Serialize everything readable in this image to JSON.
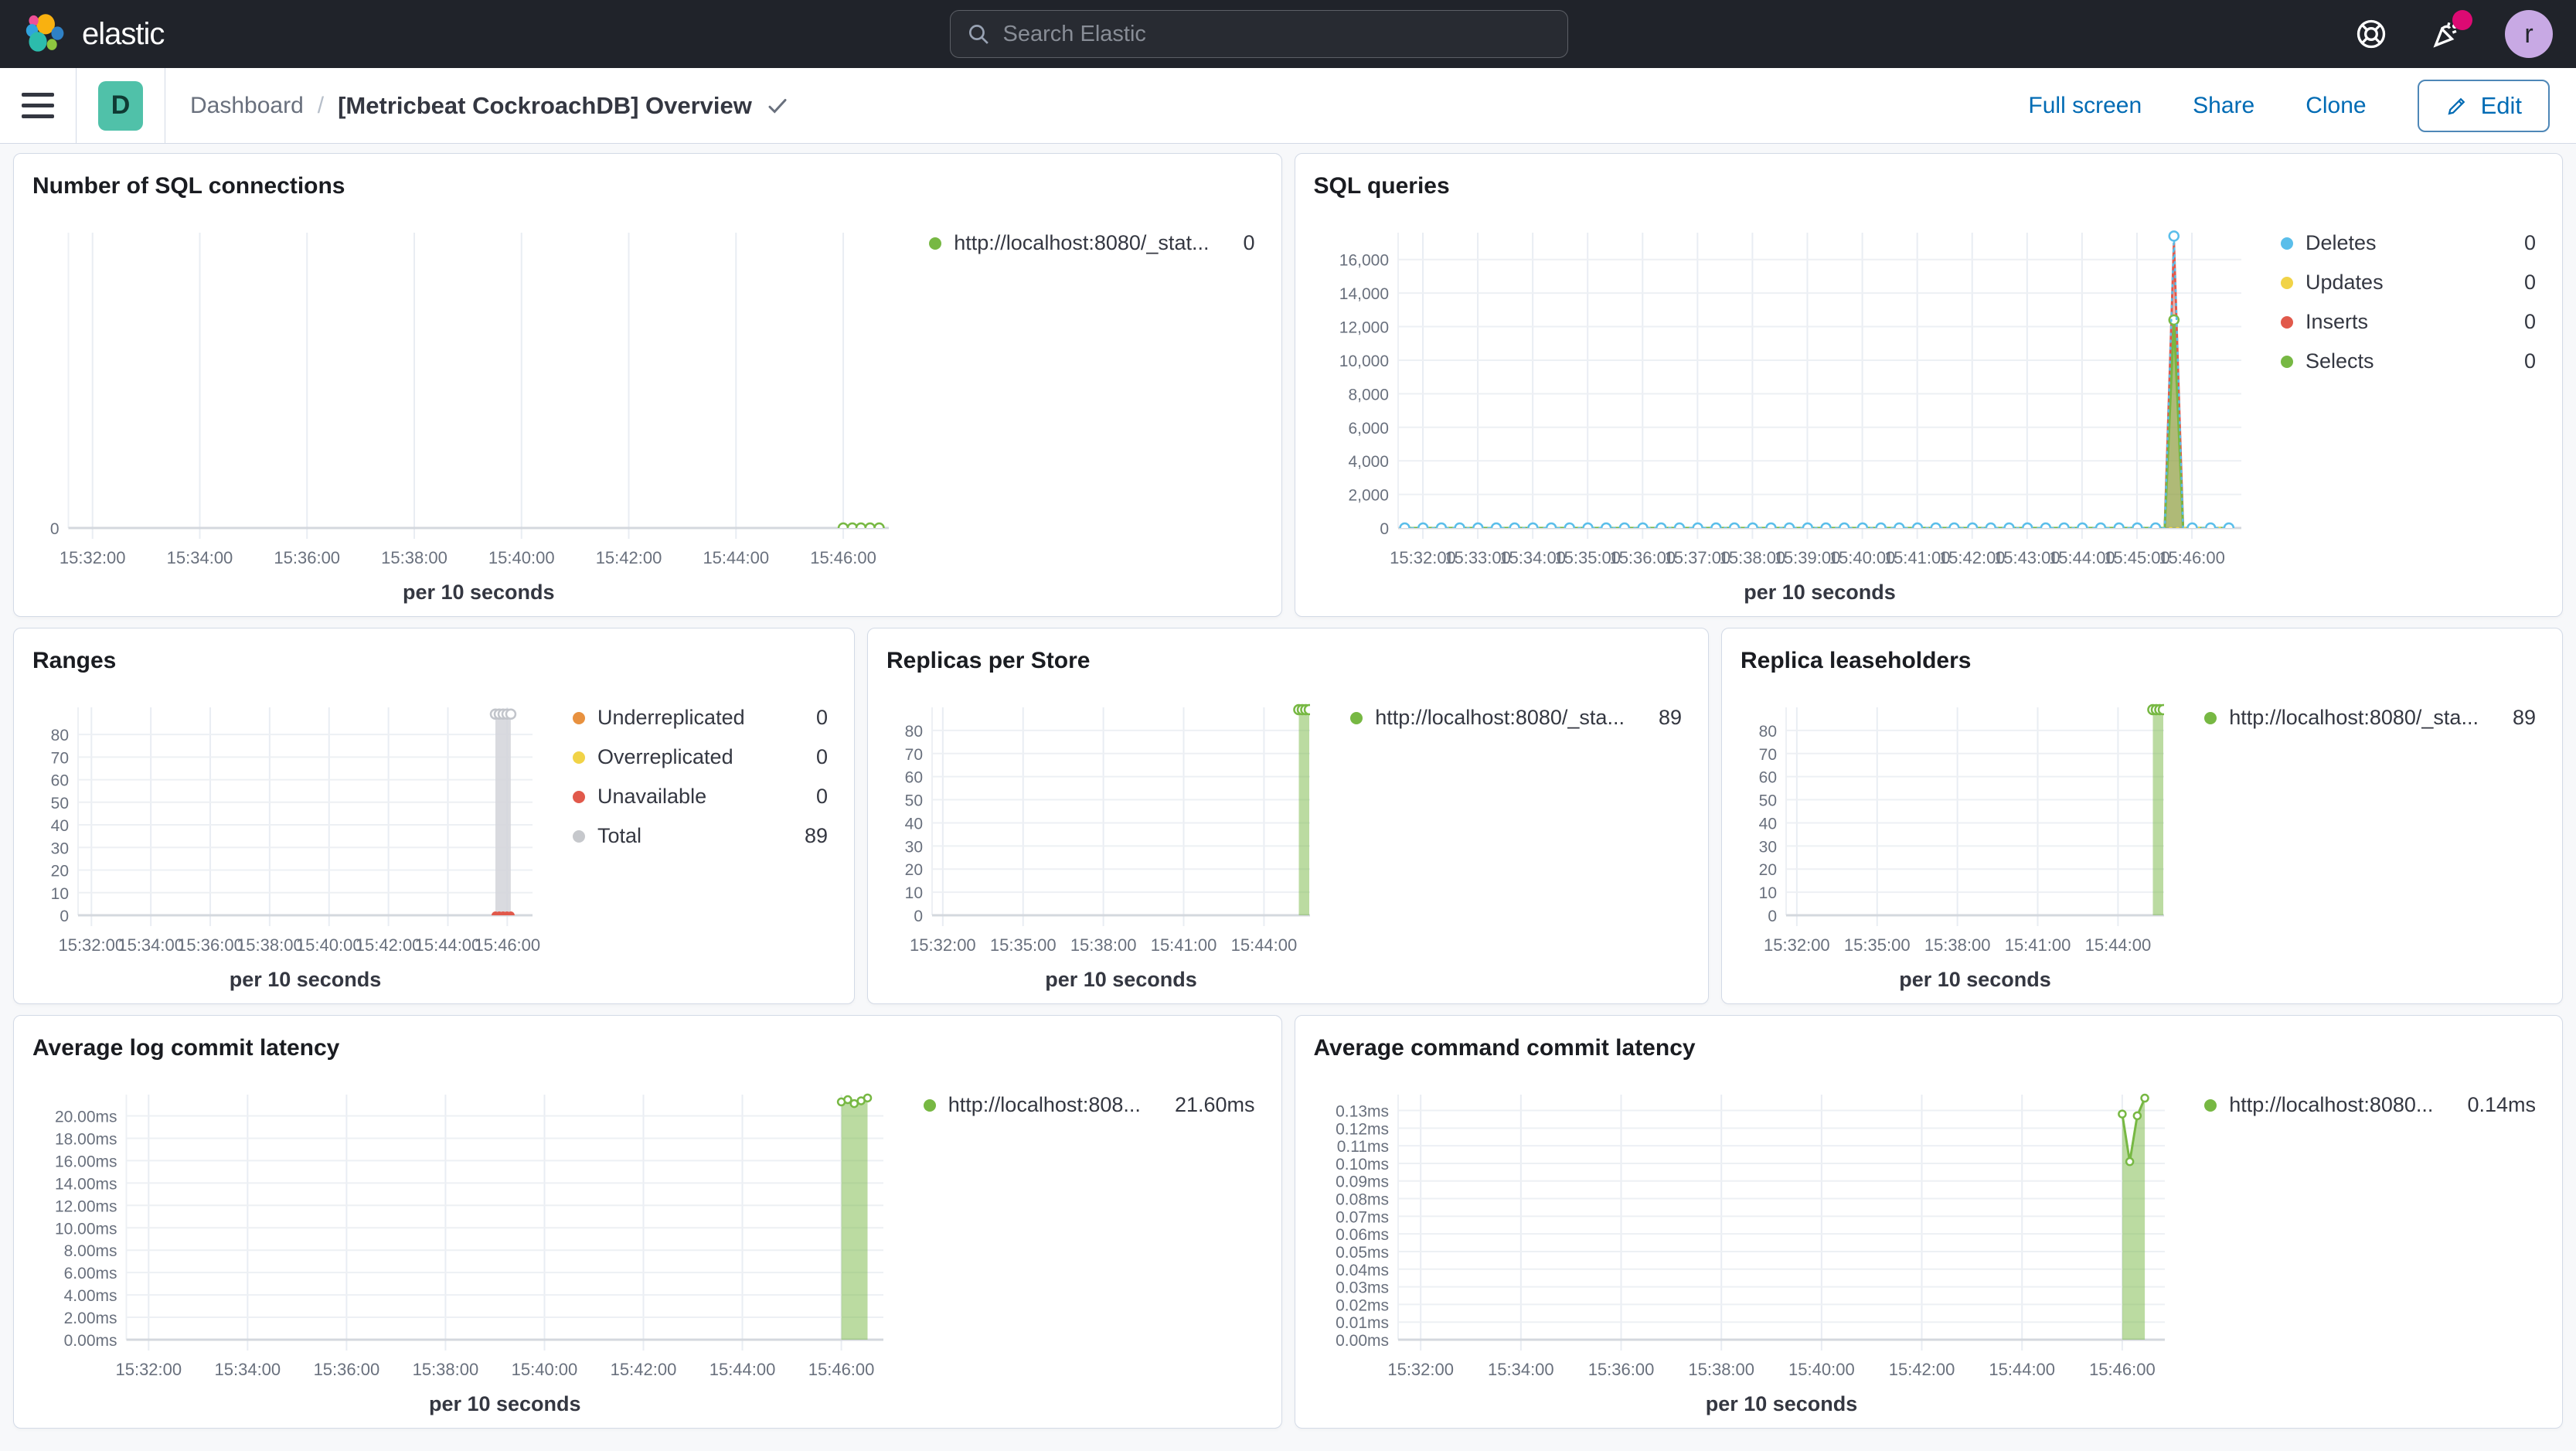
{
  "header": {
    "brand": "elastic",
    "search_placeholder": "Search Elastic",
    "avatar_initial": "r"
  },
  "toolbar": {
    "space_badge": "D",
    "breadcrumb_root": "Dashboard",
    "breadcrumb_separator": "/",
    "title": "[Metricbeat CockroachDB] Overview",
    "actions": [
      {
        "label": "Full screen"
      },
      {
        "label": "Share"
      },
      {
        "label": "Clone"
      }
    ],
    "edit_label": "Edit"
  },
  "colors": {
    "header_bg": "#20232a",
    "accent_link": "#006BB4",
    "badge_teal": "#50c1a9",
    "notification_pink": "#dd0a73",
    "avatar_purple": "#c8a9e4",
    "series_green": "#77B843",
    "series_blue": "#5ABEEA",
    "series_yellow": "#F1D347",
    "series_red": "#E1594B",
    "series_orange": "#E8913F",
    "series_gray": "#d2d4d9"
  },
  "chart_data": [
    {
      "type": "line",
      "title": "Number of SQL connections",
      "xlabel": "per 10 seconds",
      "xlim": [
        31.55,
        46.85
      ],
      "ylim": [
        0,
        10
      ],
      "x_ticks": [
        [
          32,
          "15:32:00"
        ],
        [
          34,
          "15:34:00"
        ],
        [
          36,
          "15:36:00"
        ],
        [
          38,
          "15:38:00"
        ],
        [
          40,
          "15:40:00"
        ],
        [
          42,
          "15:42:00"
        ],
        [
          44,
          "15:44:00"
        ],
        [
          46,
          "15:46:00"
        ]
      ],
      "y_ticks": [
        [
          0,
          "0"
        ]
      ],
      "legend": [
        {
          "label": "http://localhost:8080/_stat...",
          "value": "0",
          "color": "#77B843"
        }
      ],
      "series": [
        {
          "name": "http://localhost:8080/_stat...",
          "color": "#77B843",
          "type": "line",
          "marker": "open",
          "marker_mode": "all",
          "points": [
            [
              46.0,
              0
            ],
            [
              46.17,
              0
            ],
            [
              46.33,
              0
            ],
            [
              46.5,
              0
            ],
            [
              46.67,
              0
            ]
          ]
        }
      ]
    },
    {
      "type": "line",
      "title": "SQL queries",
      "xlabel": "per 10 seconds",
      "xlim": [
        31.55,
        46.9
      ],
      "ylim": [
        0,
        17600
      ],
      "x_ticks": [
        [
          32,
          "15:32:00"
        ],
        [
          33,
          "15:33:00"
        ],
        [
          34,
          "15:34:00"
        ],
        [
          35,
          "15:35:00"
        ],
        [
          36,
          "15:36:00"
        ],
        [
          37,
          "15:37:00"
        ],
        [
          38,
          "15:38:00"
        ],
        [
          39,
          "15:39:00"
        ],
        [
          40,
          "15:40:00"
        ],
        [
          41,
          "15:41:00"
        ],
        [
          42,
          "15:42:00"
        ],
        [
          43,
          "15:43:00"
        ],
        [
          44,
          "15:44:00"
        ],
        [
          45,
          "15:45:00"
        ],
        [
          46,
          "15:46:00"
        ]
      ],
      "y_ticks": [
        [
          0,
          "0"
        ],
        [
          2000,
          "2,000"
        ],
        [
          4000,
          "4,000"
        ],
        [
          6000,
          "6,000"
        ],
        [
          8000,
          "8,000"
        ],
        [
          10000,
          "10,000"
        ],
        [
          12000,
          "12,000"
        ],
        [
          14000,
          "14,000"
        ],
        [
          16000,
          "16,000"
        ]
      ],
      "legend": [
        {
          "label": "Deletes",
          "value": "0",
          "color": "#5ABEEA"
        },
        {
          "label": "Updates",
          "value": "0",
          "color": "#F1D347"
        },
        {
          "label": "Inserts",
          "value": "0",
          "color": "#E1594B"
        },
        {
          "label": "Selects",
          "value": "0",
          "color": "#77B843"
        }
      ],
      "series": [
        {
          "name": "Inserts",
          "color": "#E1594B",
          "type": "area",
          "fill_opacity": 0.4,
          "flat": {
            "from": 31.67,
            "to": 46.83,
            "step": 0.1667,
            "y": 0
          },
          "spike": [
            45.67,
            17000
          ]
        },
        {
          "name": "Selects",
          "color": "#77B843",
          "type": "area",
          "fill_opacity": 0.55,
          "marker": "open",
          "marker_mode": "spike",
          "flat": {
            "from": 31.67,
            "to": 46.83,
            "step": 0.1667,
            "y": 0
          },
          "spike": [
            45.67,
            12400
          ]
        },
        {
          "name": "Updates",
          "color": "#F1D347",
          "type": "line",
          "dash": "2 7",
          "flat": {
            "from": 31.67,
            "to": 46.83,
            "step": 0.1667,
            "y": 0
          }
        },
        {
          "name": "Deletes",
          "color": "#5ABEEA",
          "type": "line",
          "dash": "2 7",
          "marker": "open",
          "marker_mode": "all",
          "marker_every": 2,
          "flat": {
            "from": 31.67,
            "to": 46.83,
            "step": 0.1667,
            "y": 0
          },
          "spike": [
            45.67,
            17400
          ]
        }
      ]
    },
    {
      "type": "line",
      "title": "Ranges",
      "xlabel": "per 10 seconds",
      "xlim": [
        31.55,
        46.85
      ],
      "ylim": [
        0,
        92
      ],
      "x_ticks": [
        [
          32,
          "15:32:00"
        ],
        [
          34,
          "15:34:00"
        ],
        [
          36,
          "15:36:00"
        ],
        [
          38,
          "15:38:00"
        ],
        [
          40,
          "15:40:00"
        ],
        [
          42,
          "15:42:00"
        ],
        [
          44,
          "15:44:00"
        ],
        [
          46,
          "15:46:00"
        ]
      ],
      "y_ticks": [
        [
          0,
          "0"
        ],
        [
          10,
          "10"
        ],
        [
          20,
          "20"
        ],
        [
          30,
          "30"
        ],
        [
          40,
          "40"
        ],
        [
          50,
          "50"
        ],
        [
          60,
          "60"
        ],
        [
          70,
          "70"
        ],
        [
          80,
          "80"
        ]
      ],
      "legend": [
        {
          "label": "Underreplicated",
          "value": "0",
          "color": "#E8913F"
        },
        {
          "label": "Overreplicated",
          "value": "0",
          "color": "#F1D347"
        },
        {
          "label": "Unavailable",
          "value": "0",
          "color": "#E1594B"
        },
        {
          "label": "Total",
          "value": "89",
          "color": "#c6c8cc"
        }
      ],
      "series": [
        {
          "name": "Total",
          "color": "#d2d4d9",
          "stroke": "#c2c5cb",
          "type": "area",
          "fill_opacity": 0.85,
          "marker": "open",
          "marker_mode": "all",
          "points": [
            [
              45.6,
              89
            ],
            [
              45.73,
              89
            ],
            [
              45.86,
              89
            ],
            [
              45.99,
              89
            ],
            [
              46.12,
              89
            ]
          ]
        },
        {
          "name": "Underreplicated",
          "color": "#E8913F",
          "type": "line",
          "points": [
            [
              45.6,
              0
            ],
            [
              45.73,
              0
            ],
            [
              45.86,
              0
            ],
            [
              45.99,
              0
            ],
            [
              46.12,
              0
            ]
          ]
        },
        {
          "name": "Overreplicated",
          "color": "#F1D347",
          "type": "line",
          "points": [
            [
              45.6,
              0
            ],
            [
              45.73,
              0
            ],
            [
              45.86,
              0
            ],
            [
              45.99,
              0
            ],
            [
              46.12,
              0
            ]
          ]
        },
        {
          "name": "Unavailable",
          "color": "#E1594B",
          "type": "line",
          "marker": "dot",
          "marker_mode": "all",
          "points": [
            [
              45.6,
              0
            ],
            [
              45.73,
              0
            ],
            [
              45.86,
              0
            ],
            [
              45.99,
              0
            ],
            [
              46.12,
              0
            ]
          ]
        }
      ]
    },
    {
      "type": "area",
      "title": "Replicas per Store",
      "xlabel": "per 10 seconds",
      "xlim": [
        31.6,
        45.72
      ],
      "ylim": [
        0,
        90
      ],
      "x_ticks": [
        [
          32,
          "15:32:00"
        ],
        [
          35,
          "15:35:00"
        ],
        [
          38,
          "15:38:00"
        ],
        [
          41,
          "15:41:00"
        ],
        [
          44,
          "15:44:00"
        ]
      ],
      "y_ticks": [
        [
          0,
          "0"
        ],
        [
          10,
          "10"
        ],
        [
          20,
          "20"
        ],
        [
          30,
          "30"
        ],
        [
          40,
          "40"
        ],
        [
          50,
          "50"
        ],
        [
          60,
          "60"
        ],
        [
          70,
          "70"
        ],
        [
          80,
          "80"
        ]
      ],
      "legend": [
        {
          "label": "http://localhost:8080/_sta...",
          "value": "89",
          "color": "#77B843"
        }
      ],
      "series": [
        {
          "name": "http://localhost:8080/_sta...",
          "color": "#77B843",
          "type": "area",
          "fill_opacity": 0.5,
          "marker": "open",
          "marker_mode": "all",
          "points": [
            [
              45.3,
              89
            ],
            [
              45.43,
              89
            ],
            [
              45.56,
              89
            ],
            [
              45.69,
              89
            ]
          ]
        }
      ]
    },
    {
      "type": "area",
      "title": "Replica leaseholders",
      "xlabel": "per 10 seconds",
      "xlim": [
        31.6,
        45.72
      ],
      "ylim": [
        0,
        90
      ],
      "x_ticks": [
        [
          32,
          "15:32:00"
        ],
        [
          35,
          "15:35:00"
        ],
        [
          38,
          "15:38:00"
        ],
        [
          41,
          "15:41:00"
        ],
        [
          44,
          "15:44:00"
        ]
      ],
      "y_ticks": [
        [
          0,
          "0"
        ],
        [
          10,
          "10"
        ],
        [
          20,
          "20"
        ],
        [
          30,
          "30"
        ],
        [
          40,
          "40"
        ],
        [
          50,
          "50"
        ],
        [
          60,
          "60"
        ],
        [
          70,
          "70"
        ],
        [
          80,
          "80"
        ]
      ],
      "legend": [
        {
          "label": "http://localhost:8080/_sta...",
          "value": "89",
          "color": "#77B843"
        }
      ],
      "series": [
        {
          "name": "http://localhost:8080/_sta...",
          "color": "#77B843",
          "type": "area",
          "fill_opacity": 0.5,
          "marker": "open",
          "marker_mode": "all",
          "points": [
            [
              45.3,
              89
            ],
            [
              45.43,
              89
            ],
            [
              45.56,
              89
            ],
            [
              45.69,
              89
            ]
          ]
        }
      ]
    },
    {
      "type": "area",
      "title": "Average log commit latency",
      "xlabel": "per 10 seconds",
      "xlim": [
        31.55,
        46.85
      ],
      "ylim": [
        0,
        21.9
      ],
      "x_ticks": [
        [
          32,
          "15:32:00"
        ],
        [
          34,
          "15:34:00"
        ],
        [
          36,
          "15:36:00"
        ],
        [
          38,
          "15:38:00"
        ],
        [
          40,
          "15:40:00"
        ],
        [
          42,
          "15:42:00"
        ],
        [
          44,
          "15:44:00"
        ],
        [
          46,
          "15:46:00"
        ]
      ],
      "y_ticks": [
        [
          0,
          "0.00ms"
        ],
        [
          2,
          "2.00ms"
        ],
        [
          4,
          "4.00ms"
        ],
        [
          6,
          "6.00ms"
        ],
        [
          8,
          "8.00ms"
        ],
        [
          10,
          "10.00ms"
        ],
        [
          12,
          "12.00ms"
        ],
        [
          14,
          "14.00ms"
        ],
        [
          16,
          "16.00ms"
        ],
        [
          18,
          "18.00ms"
        ],
        [
          20,
          "20.00ms"
        ]
      ],
      "legend": [
        {
          "label": "http://localhost:808...",
          "value": "21.60ms",
          "color": "#77B843"
        }
      ],
      "series": [
        {
          "name": "http://localhost:808...",
          "color": "#77B843",
          "type": "area",
          "fill_opacity": 0.5,
          "marker": "open",
          "marker_mode": "all",
          "marker_r": 4.5,
          "points": [
            [
              46.0,
              21.25
            ],
            [
              46.13,
              21.45
            ],
            [
              46.26,
              21.1
            ],
            [
              46.4,
              21.35
            ],
            [
              46.53,
              21.6
            ]
          ]
        }
      ]
    },
    {
      "type": "area",
      "title": "Average command commit latency",
      "xlabel": "per 10 seconds",
      "xlim": [
        31.55,
        46.85
      ],
      "ylim": [
        0,
        0.139
      ],
      "x_ticks": [
        [
          32,
          "15:32:00"
        ],
        [
          34,
          "15:34:00"
        ],
        [
          36,
          "15:36:00"
        ],
        [
          38,
          "15:38:00"
        ],
        [
          40,
          "15:40:00"
        ],
        [
          42,
          "15:42:00"
        ],
        [
          44,
          "15:44:00"
        ],
        [
          46,
          "15:46:00"
        ]
      ],
      "y_ticks": [
        [
          0,
          "0.00ms"
        ],
        [
          0.01,
          "0.01ms"
        ],
        [
          0.02,
          "0.02ms"
        ],
        [
          0.03,
          "0.03ms"
        ],
        [
          0.04,
          "0.04ms"
        ],
        [
          0.05,
          "0.05ms"
        ],
        [
          0.06,
          "0.06ms"
        ],
        [
          0.07,
          "0.07ms"
        ],
        [
          0.08,
          "0.08ms"
        ],
        [
          0.09,
          "0.09ms"
        ],
        [
          0.1,
          "0.10ms"
        ],
        [
          0.11,
          "0.11ms"
        ],
        [
          0.12,
          "0.12ms"
        ],
        [
          0.13,
          "0.13ms"
        ]
      ],
      "legend": [
        {
          "label": "http://localhost:8080...",
          "value": "0.14ms",
          "color": "#77B843"
        }
      ],
      "series": [
        {
          "name": "http://localhost:8080...",
          "color": "#77B843",
          "type": "area",
          "fill_opacity": 0.5,
          "marker": "open",
          "marker_mode": "all",
          "marker_r": 4.5,
          "points": [
            [
              46.0,
              0.128
            ],
            [
              46.15,
              0.101
            ],
            [
              46.3,
              0.127
            ],
            [
              46.45,
              0.137
            ]
          ]
        }
      ]
    }
  ]
}
